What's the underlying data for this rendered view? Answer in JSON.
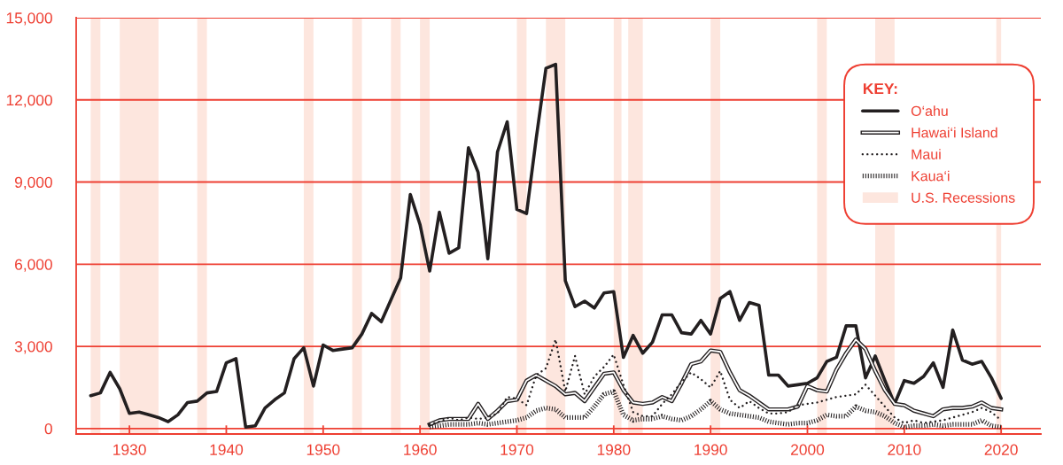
{
  "chart_data": {
    "type": "line",
    "x": [
      1926,
      1927,
      1928,
      1929,
      1930,
      1931,
      1932,
      1933,
      1934,
      1935,
      1936,
      1937,
      1938,
      1939,
      1940,
      1941,
      1942,
      1943,
      1944,
      1945,
      1946,
      1947,
      1948,
      1949,
      1950,
      1951,
      1952,
      1953,
      1954,
      1955,
      1956,
      1957,
      1958,
      1959,
      1960,
      1961,
      1962,
      1963,
      1964,
      1965,
      1966,
      1967,
      1968,
      1969,
      1970,
      1971,
      1972,
      1973,
      1974,
      1975,
      1976,
      1977,
      1978,
      1979,
      1980,
      1981,
      1982,
      1983,
      1984,
      1985,
      1986,
      1987,
      1988,
      1989,
      1990,
      1991,
      1992,
      1993,
      1994,
      1995,
      1996,
      1997,
      1998,
      1999,
      2000,
      2001,
      2002,
      2003,
      2004,
      2005,
      2006,
      2007,
      2008,
      2009,
      2010,
      2011,
      2012,
      2013,
      2014,
      2015,
      2016,
      2017,
      2018,
      2019,
      2020
    ],
    "series": [
      {
        "name": "O‘ahu",
        "color": "#231f20",
        "line_style": "solid",
        "values": [
          1200,
          1300,
          2050,
          1450,
          550,
          600,
          500,
          400,
          250,
          500,
          950,
          1000,
          1300,
          1350,
          2400,
          2550,
          50,
          100,
          750,
          1050,
          1300,
          2550,
          2950,
          1550,
          3050,
          2850,
          2900,
          2950,
          3450,
          4200,
          3900,
          4700,
          5500,
          8550,
          7450,
          5750,
          7900,
          6400,
          6600,
          10250,
          9350,
          6200,
          10100,
          11200,
          8000,
          7850,
          10600,
          13150,
          13300,
          5400,
          4450,
          4650,
          4400,
          4950,
          5000,
          2600,
          3400,
          2750,
          3150,
          4150,
          4150,
          3500,
          3450,
          3950,
          3450,
          4750,
          5000,
          3950,
          4600,
          4500,
          1950,
          1950,
          1550,
          1600,
          1650,
          1850,
          2450,
          2600,
          3750,
          3750,
          1850,
          2650,
          1750,
          900,
          1750,
          1650,
          1900,
          2400,
          1500,
          3600,
          2500,
          2350,
          2450,
          1850,
          1100
        ]
      },
      {
        "name": "Hawai‘i Island",
        "color": "#231f20",
        "line_style": "solid",
        "x": [
          1961,
          1962,
          1963,
          1964,
          1965,
          1966,
          1967,
          1968,
          1969,
          1970,
          1971,
          1972,
          1973,
          1974,
          1975,
          1976,
          1977,
          1978,
          1979,
          1980,
          1981,
          1982,
          1983,
          1984,
          1985,
          1986,
          1987,
          1988,
          1989,
          1990,
          1991,
          1992,
          1993,
          1994,
          1995,
          1996,
          1997,
          1998,
          1999,
          2000,
          2001,
          2002,
          2003,
          2004,
          2005,
          2006,
          2007,
          2008,
          2009,
          2010,
          2011,
          2012,
          2013,
          2014,
          2015,
          2016,
          2017,
          2018,
          2019,
          2020
        ],
        "values": [
          150,
          300,
          350,
          350,
          350,
          900,
          350,
          650,
          1000,
          1050,
          1750,
          1950,
          1750,
          1550,
          1250,
          1300,
          1000,
          1500,
          2000,
          2050,
          1400,
          950,
          900,
          950,
          1150,
          1000,
          1650,
          2350,
          2450,
          2850,
          2800,
          2050,
          1400,
          1200,
          950,
          700,
          700,
          700,
          800,
          1550,
          1400,
          1350,
          2150,
          2750,
          3250,
          2900,
          2100,
          1400,
          900,
          850,
          650,
          550,
          450,
          700,
          750,
          750,
          800,
          950,
          750,
          700
        ]
      },
      {
        "name": "Maui",
        "color": "#231f20",
        "line_style": "dotted",
        "x": [
          1961,
          1962,
          1963,
          1964,
          1965,
          1966,
          1967,
          1968,
          1969,
          1970,
          1971,
          1972,
          1973,
          1974,
          1975,
          1976,
          1977,
          1978,
          1979,
          1980,
          1981,
          1982,
          1983,
          1984,
          1985,
          1986,
          1987,
          1988,
          1989,
          1990,
          1991,
          1992,
          1993,
          1994,
          1995,
          1996,
          1997,
          1998,
          1999,
          2000,
          2001,
          2002,
          2003,
          2004,
          2005,
          2006,
          2007,
          2008,
          2009,
          2010,
          2011,
          2012,
          2013,
          2014,
          2015,
          2016,
          2017,
          2018,
          2019,
          2020
        ],
        "values": [
          150,
          250,
          400,
          300,
          400,
          350,
          400,
          550,
          1150,
          1100,
          850,
          1950,
          2200,
          3250,
          1350,
          2650,
          1250,
          1900,
          2250,
          2700,
          1600,
          600,
          450,
          450,
          900,
          1250,
          1700,
          2050,
          1800,
          1500,
          2100,
          1050,
          750,
          1000,
          750,
          550,
          550,
          600,
          850,
          900,
          950,
          1050,
          1150,
          1200,
          1250,
          1600,
          1200,
          800,
          400,
          200,
          300,
          200,
          250,
          300,
          400,
          500,
          600,
          750,
          600,
          300
        ]
      },
      {
        "name": "Kaua‘i",
        "color": "#231f20",
        "line_style": "dashed",
        "x": [
          1961,
          1962,
          1963,
          1964,
          1965,
          1966,
          1967,
          1968,
          1969,
          1970,
          1971,
          1972,
          1973,
          1974,
          1975,
          1976,
          1977,
          1978,
          1979,
          1980,
          1981,
          1982,
          1983,
          1984,
          1985,
          1986,
          1987,
          1988,
          1989,
          1990,
          1991,
          1992,
          1993,
          1994,
          1995,
          1996,
          1997,
          1998,
          1999,
          2000,
          2001,
          2002,
          2003,
          2004,
          2005,
          2006,
          2007,
          2008,
          2009,
          2010,
          2011,
          2012,
          2013,
          2014,
          2015,
          2016,
          2017,
          2018,
          2019,
          2020
        ],
        "values": [
          50,
          100,
          150,
          150,
          150,
          200,
          150,
          200,
          250,
          300,
          400,
          650,
          750,
          700,
          400,
          400,
          400,
          800,
          1250,
          1350,
          500,
          300,
          350,
          350,
          450,
          350,
          300,
          450,
          700,
          1000,
          700,
          550,
          500,
          450,
          400,
          250,
          200,
          150,
          200,
          200,
          300,
          500,
          450,
          450,
          800,
          650,
          600,
          450,
          200,
          50,
          100,
          100,
          150,
          100,
          150,
          150,
          150,
          300,
          100,
          50
        ]
      }
    ],
    "xlim": [
      1924.5,
      2024.1
    ],
    "xticks": [
      1930,
      1940,
      1950,
      1960,
      1970,
      1980,
      1990,
      2000,
      2010,
      2020
    ],
    "ylim": [
      -200,
      15000
    ],
    "yticks": [
      0,
      {
        "value": 3000,
        "label": "3,000"
      },
      {
        "value": 6000,
        "label": "6,000"
      },
      {
        "value": 9000,
        "label": "9,000"
      },
      {
        "value": 12000,
        "label": "12,000"
      },
      {
        "value": 15000,
        "label": "15,000"
      }
    ],
    "bands": [
      {
        "axis": "x",
        "from": 1926,
        "to": 1927,
        "color": "#fde6de"
      },
      {
        "axis": "x",
        "from": 1929,
        "to": 1933,
        "color": "#fde6de"
      },
      {
        "axis": "x",
        "from": 1937,
        "to": 1938,
        "color": "#fde6de"
      },
      {
        "axis": "x",
        "from": 1948,
        "to": 1949,
        "color": "#fde6de"
      },
      {
        "axis": "x",
        "from": 1953,
        "to": 1954,
        "color": "#fde6de"
      },
      {
        "axis": "x",
        "from": 1957,
        "to": 1958,
        "color": "#fde6de"
      },
      {
        "axis": "x",
        "from": 1960,
        "to": 1961,
        "color": "#fde6de"
      },
      {
        "axis": "x",
        "from": 1970,
        "to": 1971,
        "color": "#fde6de"
      },
      {
        "axis": "x",
        "from": 1973,
        "to": 1975,
        "color": "#fde6de"
      },
      {
        "axis": "x",
        "from": 1980,
        "to": 1980.8,
        "color": "#fde6de"
      },
      {
        "axis": "x",
        "from": 1981.5,
        "to": 1983,
        "color": "#fde6de"
      },
      {
        "axis": "x",
        "from": 1990,
        "to": 1991,
        "color": "#fde6de"
      },
      {
        "axis": "x",
        "from": 2001,
        "to": 2002,
        "color": "#fde6de"
      },
      {
        "axis": "x",
        "from": 2007,
        "to": 2009,
        "label": "U.S. Recessions",
        "color": "#fde6de"
      },
      {
        "axis": "x",
        "from": 2019.5,
        "to": 2020,
        "color": "#fde6de"
      }
    ],
    "grid": "y",
    "legend": "top right",
    "legend_title": "KEY:"
  }
}
